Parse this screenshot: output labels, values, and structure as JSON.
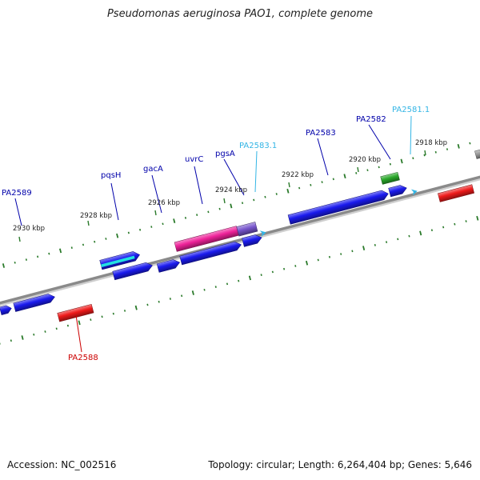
{
  "title": "Pseudomonas aeruginosa PAO1, complete genome",
  "footer": {
    "accession": "Accession: NC_002516",
    "summary": "Topology: circular; Length: 6,264,404 bp; Genes: 5,646"
  },
  "colors": {
    "backbone": "#8a8a8a",
    "tick": "#2a7a2a",
    "scale_label": "#222222",
    "gene_label": "#0000aa",
    "trna_label": "#33b5e5",
    "reverse_label": "#cc0000",
    "cds": "#1a1aee",
    "reverse_cds": "#ee1a1a",
    "pqsH_band": "#22e0e0",
    "uvrC": "#ee2299",
    "pgsA": "#7755cc",
    "small_rna": "#2aa82a",
    "trna_marker": "#33b5e5"
  },
  "scale_labels": [
    "2930 kbp",
    "2928 kbp",
    "2926 kbp",
    "2924 kbp",
    "2922 kbp",
    "2920 kbp",
    "2918 kbp"
  ],
  "gene_labels": [
    {
      "text": "PA2589",
      "type": "cds"
    },
    {
      "text": "pqsH",
      "type": "cds"
    },
    {
      "text": "gacA",
      "type": "cds"
    },
    {
      "text": "uvrC",
      "type": "cds"
    },
    {
      "text": "pgsA",
      "type": "cds"
    },
    {
      "text": "PA2583.1",
      "type": "trna"
    },
    {
      "text": "PA2583",
      "type": "cds"
    },
    {
      "text": "PA2582",
      "type": "cds"
    },
    {
      "text": "PA2581.1",
      "type": "trna"
    },
    {
      "text": "PA2588",
      "type": "reverse"
    }
  ]
}
